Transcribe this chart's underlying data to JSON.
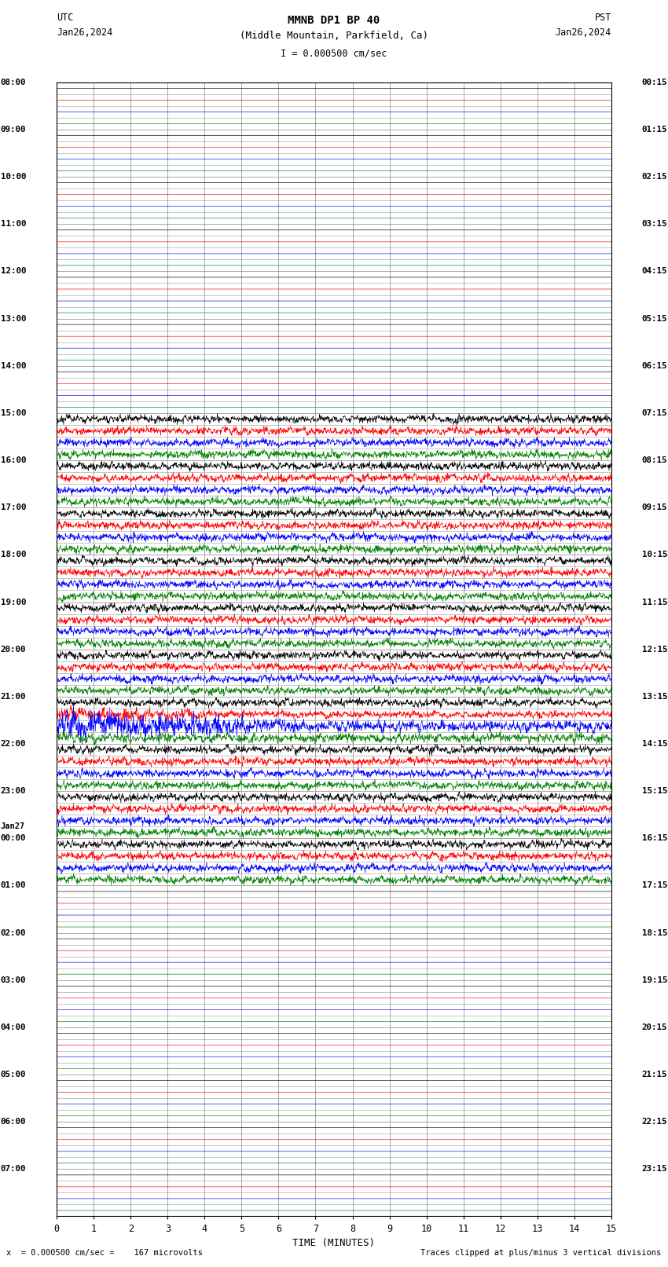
{
  "title_line1": "MMNB DP1 BP 40",
  "title_line2": "(Middle Mountain, Parkfield, Ca)",
  "scale_label": "I = 0.000500 cm/sec",
  "left_label": "UTC",
  "right_label": "PST",
  "left_date": "Jan26,2024",
  "right_date": "Jan26,2024",
  "xlabel": "TIME (MINUTES)",
  "footer_left": "x  = 0.000500 cm/sec =    167 microvolts",
  "footer_right": "Traces clipped at plus/minus 3 vertical divisions",
  "bg_color": "#ffffff",
  "grid_color": "#999999",
  "trace_colors": [
    "#000000",
    "#ff0000",
    "#0000ff",
    "#008000"
  ],
  "left_hour_labels": [
    [
      "08:00",
      0
    ],
    [
      "09:00",
      1
    ],
    [
      "10:00",
      2
    ],
    [
      "11:00",
      3
    ],
    [
      "12:00",
      4
    ],
    [
      "13:00",
      5
    ],
    [
      "14:00",
      6
    ],
    [
      "15:00",
      7
    ],
    [
      "16:00",
      8
    ],
    [
      "17:00",
      9
    ],
    [
      "18:00",
      10
    ],
    [
      "19:00",
      11
    ],
    [
      "20:00",
      12
    ],
    [
      "21:00",
      13
    ],
    [
      "22:00",
      14
    ],
    [
      "23:00",
      15
    ],
    [
      "00:00",
      16
    ],
    [
      "01:00",
      17
    ],
    [
      "02:00",
      18
    ],
    [
      "03:00",
      19
    ],
    [
      "04:00",
      20
    ],
    [
      "05:00",
      21
    ],
    [
      "06:00",
      22
    ],
    [
      "07:00",
      23
    ]
  ],
  "right_hour_labels": [
    [
      "00:15",
      0
    ],
    [
      "01:15",
      1
    ],
    [
      "02:15",
      2
    ],
    [
      "03:15",
      3
    ],
    [
      "04:15",
      4
    ],
    [
      "05:15",
      5
    ],
    [
      "06:15",
      6
    ],
    [
      "07:15",
      7
    ],
    [
      "08:15",
      8
    ],
    [
      "09:15",
      9
    ],
    [
      "10:15",
      10
    ],
    [
      "11:15",
      11
    ],
    [
      "12:15",
      12
    ],
    [
      "13:15",
      13
    ],
    [
      "14:15",
      14
    ],
    [
      "15:15",
      15
    ],
    [
      "16:15",
      16
    ],
    [
      "17:15",
      17
    ],
    [
      "18:15",
      18
    ],
    [
      "19:15",
      19
    ],
    [
      "20:15",
      20
    ],
    [
      "21:15",
      21
    ],
    [
      "22:15",
      22
    ],
    [
      "23:15",
      23
    ]
  ],
  "num_hours": 24,
  "traces_per_hour": 4,
  "activity_by_hour": [
    0,
    0,
    0,
    0,
    0,
    0,
    0,
    2,
    2,
    2,
    2,
    2,
    2,
    3,
    2,
    2,
    2,
    0,
    0,
    0,
    0,
    0,
    0,
    0
  ],
  "jan27_label_hour": 15.75,
  "amp_quiet": 0.025,
  "amp_low": 0.09,
  "amp_medium": 0.16,
  "amp_high": 0.35,
  "amp_very_high": 0.55,
  "trace_lw": 0.45,
  "n_samples": 1800
}
